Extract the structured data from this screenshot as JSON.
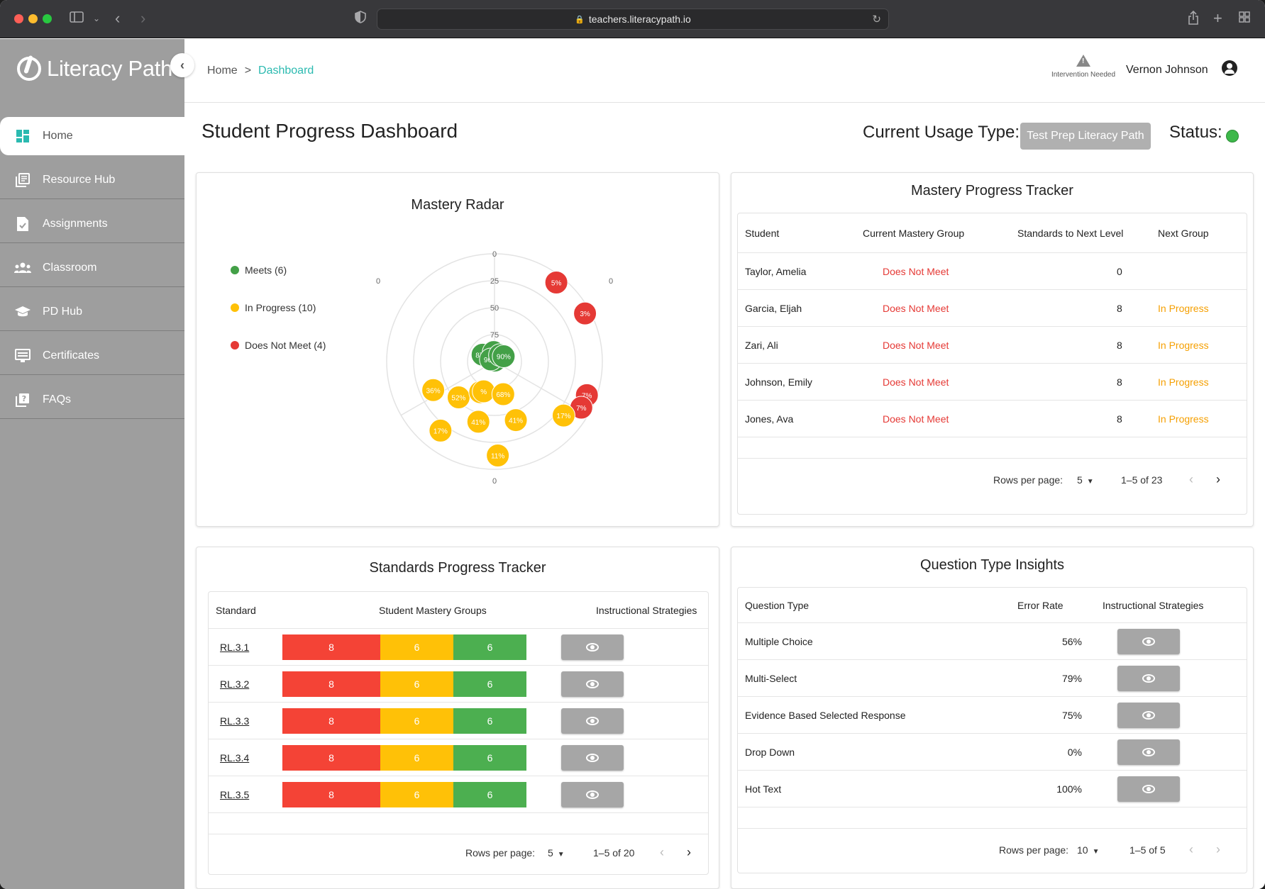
{
  "browser": {
    "url": "teachers.literacypath.io"
  },
  "sidebar": {
    "brand": "Literacy Path",
    "items": [
      {
        "label": "Home",
        "icon": "dashboard-icon",
        "active": true
      },
      {
        "label": "Resource Hub",
        "icon": "library-icon"
      },
      {
        "label": "Assignments",
        "icon": "assignment-icon"
      },
      {
        "label": "Classroom",
        "icon": "people-icon"
      },
      {
        "label": "PD Hub",
        "icon": "school-icon"
      },
      {
        "label": "Certificates",
        "icon": "certificate-icon"
      },
      {
        "label": "FAQs",
        "icon": "help-icon"
      }
    ]
  },
  "header": {
    "breadcrumb": {
      "home": "Home",
      "separator": ">",
      "current": "Dashboard"
    },
    "intervention_label": "Intervention Needed",
    "user_name": "Vernon Johnson"
  },
  "page": {
    "title": "Student Progress Dashboard",
    "usage_label": "Current Usage Type:",
    "usage_value": "Test Prep Literacy Path",
    "status_label": "Status:",
    "status_color": "#3db84a"
  },
  "radar": {
    "title": "Mastery Radar",
    "legend": [
      {
        "label": "Meets (6)",
        "color": "#43a047"
      },
      {
        "label": "In Progress (10)",
        "color": "#ffc107"
      },
      {
        "label": "Does Not Meet (4)",
        "color": "#e53935"
      }
    ],
    "rings": [
      "0",
      "25",
      "50",
      "75"
    ],
    "axis_labels": {
      "top": "0",
      "left": "0",
      "right": "0",
      "bottom": "0"
    },
    "points": [
      {
        "label": "5%",
        "group": "Does Not Meet",
        "value": 5
      },
      {
        "label": "3%",
        "group": "Does Not Meet",
        "value": 3
      },
      {
        "label": "7%",
        "group": "Does Not Meet",
        "value": 7
      },
      {
        "label": "7%",
        "group": "Does Not Meet",
        "value": 7
      },
      {
        "label": "36%",
        "group": "In Progress",
        "value": 36
      },
      {
        "label": "52%",
        "group": "In Progress",
        "value": 52
      },
      {
        "label": "68%",
        "group": "In Progress",
        "value": 68
      },
      {
        "label": "%",
        "group": "In Progress",
        "value": 70
      },
      {
        "label": "68%",
        "group": "In Progress",
        "value": 68
      },
      {
        "label": "41%",
        "group": "In Progress",
        "value": 41
      },
      {
        "label": "41%",
        "group": "In Progress",
        "value": 41
      },
      {
        "label": "17%",
        "group": "In Progress",
        "value": 17
      },
      {
        "label": "17%",
        "group": "In Progress",
        "value": 17
      },
      {
        "label": "11%",
        "group": "In Progress",
        "value": 11
      },
      {
        "label": "87%",
        "group": "Meets",
        "value": 87
      },
      {
        "label": "9",
        "group": "Meets",
        "value": 91
      },
      {
        "label": "99%",
        "group": "Meets",
        "value": 99
      },
      {
        "label": "96%",
        "group": "Meets",
        "value": 96
      },
      {
        "label": "9",
        "group": "Meets",
        "value": 92
      },
      {
        "label": "90%",
        "group": "Meets",
        "value": 90
      }
    ]
  },
  "mastery_tracker": {
    "title": "Mastery Progress Tracker",
    "columns": [
      "Student",
      "Current Mastery Group",
      "Standards to Next Level",
      "Next Group"
    ],
    "rows": [
      {
        "student": "Taylor, Amelia",
        "group": "Does Not Meet",
        "standards": "0",
        "next": ""
      },
      {
        "student": "Garcia, Eljah",
        "group": "Does Not Meet",
        "standards": "8",
        "next": "In Progress"
      },
      {
        "student": "Zari, Ali",
        "group": "Does Not Meet",
        "standards": "8",
        "next": "In Progress"
      },
      {
        "student": "Johnson, Emily",
        "group": "Does Not Meet",
        "standards": "8",
        "next": "In Progress"
      },
      {
        "student": "Jones, Ava",
        "group": "Does Not Meet",
        "standards": "8",
        "next": "In Progress"
      }
    ],
    "pager": {
      "rows_label": "Rows per page:",
      "rows_value": "5",
      "range": "1–5 of 23"
    }
  },
  "standards_tracker": {
    "title": "Standards Progress Tracker",
    "columns": [
      "Standard",
      "Student Mastery Groups",
      "Instructional Strategies"
    ],
    "rows": [
      {
        "standard": "RL.3.1",
        "does_not_meet": 8,
        "in_progress": 6,
        "meets": 6
      },
      {
        "standard": "RL.3.2",
        "does_not_meet": 8,
        "in_progress": 6,
        "meets": 6
      },
      {
        "standard": "RL.3.3",
        "does_not_meet": 8,
        "in_progress": 6,
        "meets": 6
      },
      {
        "standard": "RL.3.4",
        "does_not_meet": 8,
        "in_progress": 6,
        "meets": 6
      },
      {
        "standard": "RL.3.5",
        "does_not_meet": 8,
        "in_progress": 6,
        "meets": 6
      }
    ],
    "pager": {
      "rows_label": "Rows per page:",
      "rows_value": "5",
      "range": "1–5 of 20"
    }
  },
  "question_insights": {
    "title": "Question Type Insights",
    "columns": [
      "Question Type",
      "Error Rate",
      "Instructional Strategies"
    ],
    "rows": [
      {
        "type": "Multiple Choice",
        "error": "56%"
      },
      {
        "type": "Multi-Select",
        "error": "79%"
      },
      {
        "type": "Evidence Based Selected Response",
        "error": "75%"
      },
      {
        "type": "Drop Down",
        "error": "0%"
      },
      {
        "type": "Hot Text",
        "error": "100%"
      }
    ],
    "pager": {
      "rows_label": "Rows per page:",
      "rows_value": "10",
      "range": "1–5 of 5"
    }
  },
  "colors": {
    "accent": "#2bbab0",
    "red": "#f44336",
    "yellow": "#ffc107",
    "green": "#4caf50"
  }
}
